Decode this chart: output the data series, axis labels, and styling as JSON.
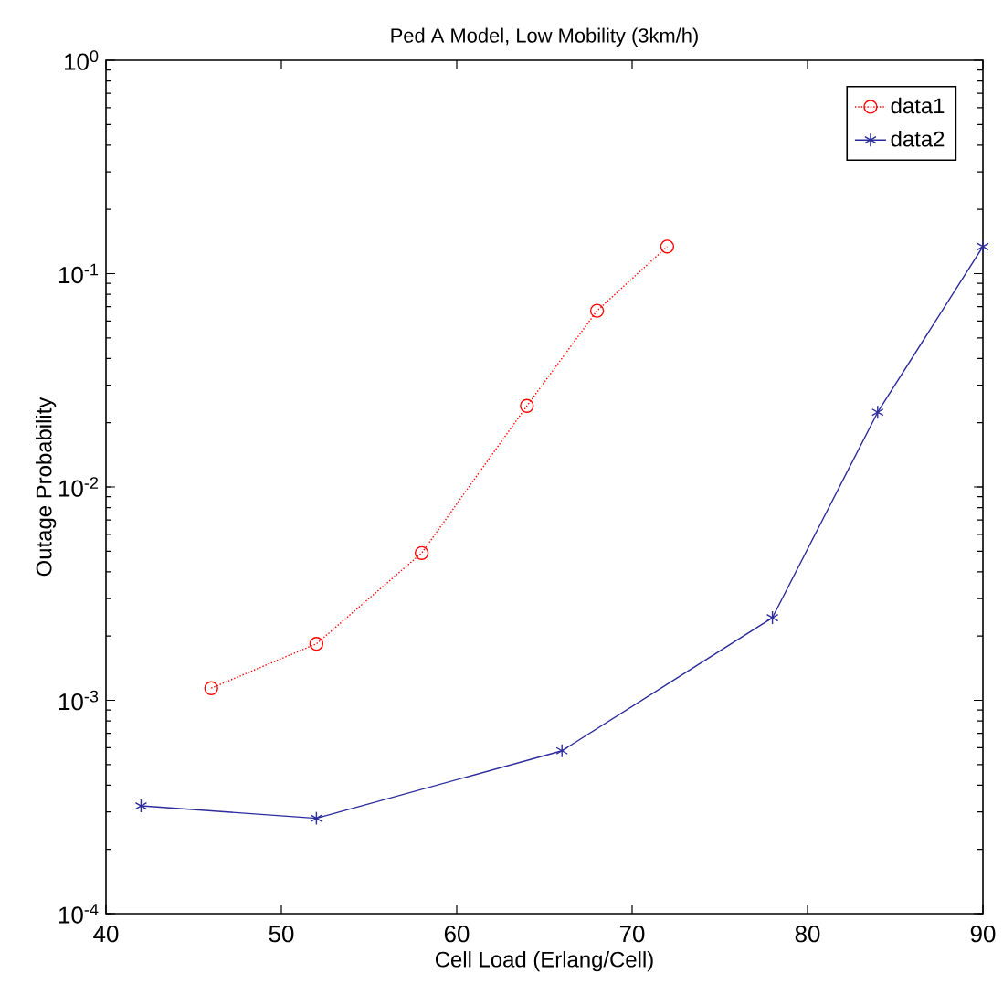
{
  "chart_data": {
    "type": "line",
    "title": "Ped A Model, Low Mobility (3km/h)",
    "xlabel": "Cell Load (Erlang/Cell)",
    "ylabel": "Outage Probability",
    "log": "y",
    "grid": false,
    "legend": "top right",
    "xlim": [
      40,
      90
    ],
    "xticks": [
      40,
      50,
      60,
      70,
      80,
      90
    ],
    "ylim": [
      0.0001,
      1
    ],
    "yticks": [
      {
        "value": 0.0001,
        "label": "10$^{-4}$"
      },
      {
        "value": 0.001,
        "label": "10$^{-3}$"
      },
      {
        "value": 0.01,
        "label": "10$^{-2}$"
      },
      {
        "value": 0.1,
        "label": "10$^{-1}$"
      },
      {
        "value": 1,
        "label": "10$^{0}$"
      }
    ],
    "series": [
      {
        "name": "data1",
        "color": "#ff0000",
        "marker": "circle",
        "line_style": "dotted",
        "x": [
          46,
          52,
          58,
          64,
          68,
          72
        ],
        "values": [
          0.00114,
          0.00184,
          0.0049,
          0.024,
          0.067,
          0.134
        ]
      },
      {
        "name": "data2",
        "color": "#2b2b9b",
        "marker": "cross",
        "line_style": "solid",
        "x": [
          42,
          52,
          66,
          78,
          84,
          90
        ],
        "values": [
          0.00032,
          0.00028,
          0.00058,
          0.00244,
          0.0224,
          0.134
        ]
      }
    ]
  }
}
